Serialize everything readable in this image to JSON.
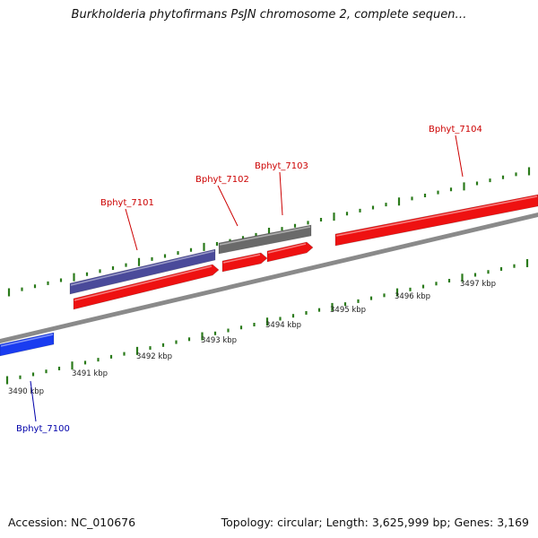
{
  "title": "Burkholderia phytofirmans PsJN chromosome 2, complete sequen…",
  "accession_text": "Accession: NC_010676",
  "topology_text": "Topology: circular; Length: 3,625,999 bp; Genes: 3,169",
  "colors": {
    "tick": "#2a7a1a",
    "backbone": "#8a8a8a",
    "forward_feature": "#ee1111",
    "reverse_feature": "#4a4a9a",
    "blue_feature": "#1a3cf0",
    "gray_feature": "#6a6a6a",
    "label_red": "#cc0000",
    "label_blue": "#0000aa",
    "kbp_label": "#222222"
  },
  "scale_labels": [
    "3490 kbp",
    "3491 kbp",
    "3492 kbp",
    "3493 kbp",
    "3494 kbp",
    "3495 kbp",
    "3496 kbp",
    "3497 kbp"
  ],
  "gene_labels": [
    {
      "text": "Bphyt_7100",
      "color": "label_blue"
    },
    {
      "text": "Bphyt_7101",
      "color": "label_red"
    },
    {
      "text": "Bphyt_7102",
      "color": "label_red"
    },
    {
      "text": "Bphyt_7103",
      "color": "label_red"
    },
    {
      "text": "Bphyt_7104",
      "color": "label_red"
    }
  ]
}
